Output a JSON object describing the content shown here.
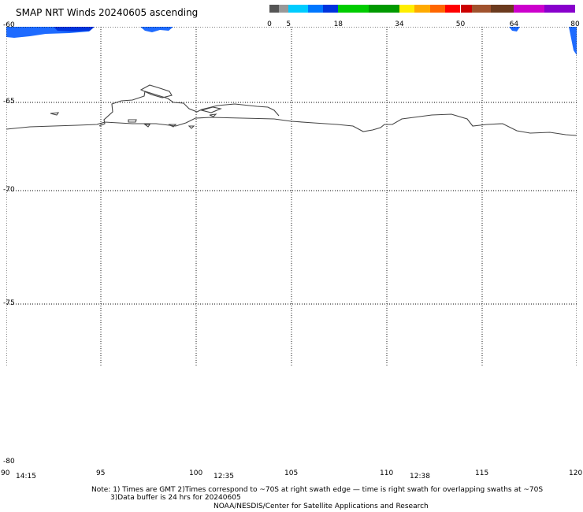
{
  "title": "SMAP NRT Winds 20240605 ascending",
  "color_scale": {
    "segments": [
      {
        "color": "#555555",
        "from": 0,
        "to": 2.5
      },
      {
        "color": "#999999",
        "from": 2.5,
        "to": 5
      },
      {
        "color": "#00ccff",
        "from": 5,
        "to": 10
      },
      {
        "color": "#0077ff",
        "from": 10,
        "to": 14
      },
      {
        "color": "#0033dd",
        "from": 14,
        "to": 18
      },
      {
        "color": "#00cc00",
        "from": 18,
        "to": 26
      },
      {
        "color": "#009900",
        "from": 26,
        "to": 34
      },
      {
        "color": "#ffee00",
        "from": 34,
        "to": 38
      },
      {
        "color": "#ffaa00",
        "from": 38,
        "to": 42
      },
      {
        "color": "#ff6600",
        "from": 42,
        "to": 46
      },
      {
        "color": "#ff0000",
        "from": 46,
        "to": 50
      },
      {
        "color": "#cc0000",
        "from": 50,
        "to": 53
      },
      {
        "color": "#a0522d",
        "from": 53,
        "to": 58
      },
      {
        "color": "#6b3a1e",
        "from": 58,
        "to": 64
      },
      {
        "color": "#cc00cc",
        "from": 64,
        "to": 72
      },
      {
        "color": "#8800cc",
        "from": 72,
        "to": 80
      }
    ],
    "labels": [
      "0",
      "5",
      "18",
      "34",
      "50",
      "64",
      "80"
    ]
  },
  "map": {
    "lat_labels": [
      "-60",
      "-65",
      "-70",
      "-75",
      "-80"
    ],
    "lon_labels": [
      "90",
      "95",
      "100",
      "105",
      "110",
      "115",
      "120"
    ],
    "time_labels": [
      "14:15",
      "12:35",
      "12:38"
    ]
  },
  "note_lines": [
    "Note: 1) Times are GMT 2)Times correspond to ~70S at right swath edge — time is right swath for overlapping swaths at ~70S",
    "3)Data buffer is 24 hrs for 20240605",
    "NOAA/NESDIS/Center for Satellite Applications and Research"
  ]
}
